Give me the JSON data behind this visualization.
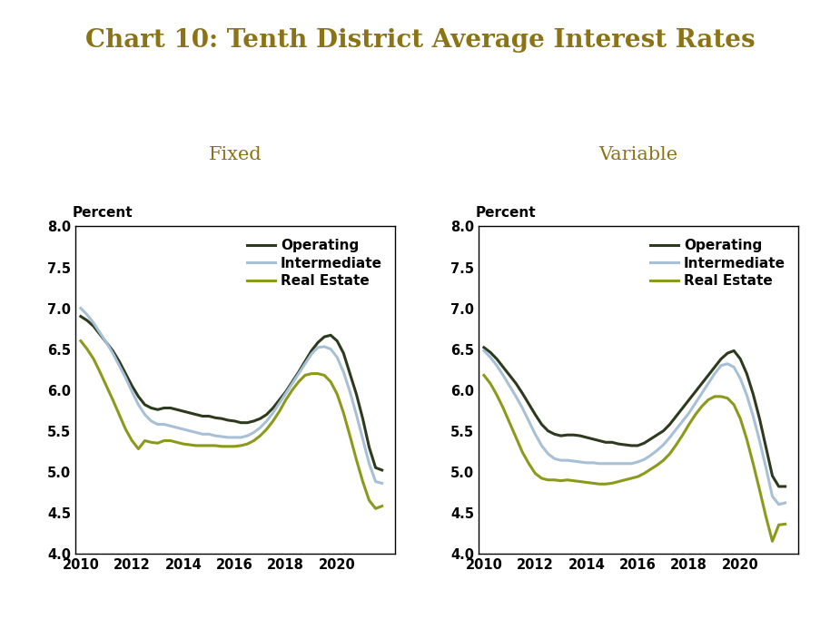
{
  "title": "Chart 10: Tenth District Average Interest Rates",
  "title_color": "#8B7316",
  "title_fontsize": 20,
  "left_subtitle": "Fixed",
  "right_subtitle": "Variable",
  "subtitle_color": "#8B7316",
  "subtitle_fontsize": 15,
  "ylabel": "Percent",
  "ylim": [
    4.0,
    8.0
  ],
  "yticks": [
    4.0,
    4.5,
    5.0,
    5.5,
    6.0,
    6.5,
    7.0,
    7.5,
    8.0
  ],
  "xtick_years": [
    2010,
    2012,
    2014,
    2016,
    2018,
    2020
  ],
  "line_colors": {
    "operating": "#2d3a1e",
    "intermediate": "#a8c0d6",
    "real_estate": "#8b9a1a"
  },
  "line_width": 2.2,
  "fixed": {
    "operating": [
      6.9,
      6.85,
      6.78,
      6.68,
      6.58,
      6.48,
      6.35,
      6.2,
      6.05,
      5.92,
      5.82,
      5.78,
      5.76,
      5.78,
      5.78,
      5.76,
      5.74,
      5.72,
      5.7,
      5.68,
      5.68,
      5.66,
      5.65,
      5.63,
      5.62,
      5.6,
      5.6,
      5.62,
      5.65,
      5.7,
      5.78,
      5.88,
      5.98,
      6.1,
      6.22,
      6.35,
      6.48,
      6.58,
      6.65,
      6.67,
      6.6,
      6.45,
      6.2,
      5.95,
      5.65,
      5.3,
      5.05,
      5.02
    ],
    "intermediate": [
      7.0,
      6.92,
      6.82,
      6.7,
      6.58,
      6.45,
      6.3,
      6.15,
      5.98,
      5.82,
      5.7,
      5.62,
      5.58,
      5.58,
      5.56,
      5.54,
      5.52,
      5.5,
      5.48,
      5.46,
      5.46,
      5.44,
      5.43,
      5.42,
      5.42,
      5.42,
      5.44,
      5.48,
      5.54,
      5.62,
      5.72,
      5.84,
      5.96,
      6.08,
      6.2,
      6.32,
      6.44,
      6.52,
      6.53,
      6.5,
      6.4,
      6.22,
      5.98,
      5.7,
      5.4,
      5.1,
      4.88,
      4.86
    ],
    "real_estate": [
      6.6,
      6.5,
      6.38,
      6.22,
      6.05,
      5.88,
      5.7,
      5.52,
      5.38,
      5.28,
      5.38,
      5.36,
      5.35,
      5.38,
      5.38,
      5.36,
      5.34,
      5.33,
      5.32,
      5.32,
      5.32,
      5.32,
      5.31,
      5.31,
      5.31,
      5.32,
      5.34,
      5.38,
      5.44,
      5.52,
      5.62,
      5.74,
      5.88,
      6.0,
      6.1,
      6.18,
      6.2,
      6.2,
      6.18,
      6.1,
      5.95,
      5.72,
      5.44,
      5.15,
      4.88,
      4.65,
      4.55,
      4.58
    ]
  },
  "variable": {
    "operating": [
      6.52,
      6.46,
      6.38,
      6.28,
      6.18,
      6.08,
      5.96,
      5.83,
      5.7,
      5.58,
      5.5,
      5.46,
      5.44,
      5.45,
      5.45,
      5.44,
      5.42,
      5.4,
      5.38,
      5.36,
      5.36,
      5.34,
      5.33,
      5.32,
      5.32,
      5.35,
      5.4,
      5.45,
      5.5,
      5.58,
      5.68,
      5.78,
      5.88,
      5.98,
      6.08,
      6.18,
      6.28,
      6.38,
      6.45,
      6.48,
      6.38,
      6.2,
      5.95,
      5.65,
      5.3,
      4.95,
      4.82,
      4.82
    ],
    "intermediate": [
      6.48,
      6.4,
      6.3,
      6.18,
      6.05,
      5.92,
      5.78,
      5.62,
      5.46,
      5.32,
      5.22,
      5.16,
      5.14,
      5.14,
      5.13,
      5.12,
      5.11,
      5.11,
      5.1,
      5.1,
      5.1,
      5.1,
      5.1,
      5.1,
      5.12,
      5.15,
      5.2,
      5.26,
      5.33,
      5.42,
      5.52,
      5.62,
      5.72,
      5.84,
      5.96,
      6.08,
      6.2,
      6.3,
      6.32,
      6.28,
      6.14,
      5.94,
      5.68,
      5.38,
      5.05,
      4.7,
      4.6,
      4.62
    ],
    "real_estate": [
      6.18,
      6.08,
      5.94,
      5.78,
      5.6,
      5.42,
      5.24,
      5.1,
      4.98,
      4.92,
      4.9,
      4.9,
      4.89,
      4.9,
      4.89,
      4.88,
      4.87,
      4.86,
      4.85,
      4.85,
      4.86,
      4.88,
      4.9,
      4.92,
      4.94,
      4.98,
      5.03,
      5.08,
      5.14,
      5.22,
      5.33,
      5.45,
      5.58,
      5.7,
      5.8,
      5.88,
      5.92,
      5.92,
      5.9,
      5.82,
      5.65,
      5.4,
      5.1,
      4.78,
      4.45,
      4.15,
      4.35,
      4.36
    ]
  },
  "background_color": "#ffffff",
  "legend_fontsize": 11,
  "axis_label_fontsize": 11
}
